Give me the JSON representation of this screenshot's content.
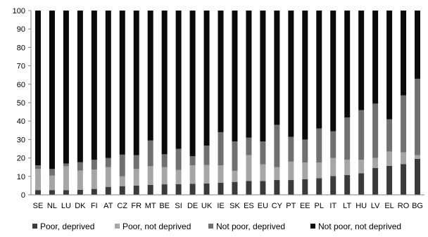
{
  "chart_data": {
    "type": "bar",
    "stacked": true,
    "categories": [
      "SE",
      "NL",
      "LU",
      "DK",
      "FI",
      "AT",
      "CZ",
      "FR",
      "MT",
      "BE",
      "SI",
      "DE",
      "UK",
      "IE",
      "SK",
      "ES",
      "EU",
      "CY",
      "PT",
      "EE",
      "PL",
      "IT",
      "LT",
      "HU",
      "LV",
      "EL",
      "RO",
      "BG"
    ],
    "series": [
      {
        "name": "Poor, deprived",
        "color": "#3a3a3a",
        "values": [
          2.5,
          2.5,
          2.5,
          2.7,
          3.2,
          4.3,
          4.7,
          5.0,
          5.4,
          5.7,
          5.8,
          6.0,
          6.2,
          6.5,
          7.0,
          7.5,
          7.5,
          8.0,
          8.0,
          8.5,
          9.0,
          10.2,
          10.7,
          11.7,
          14.5,
          15.7,
          16.7,
          19.5
        ]
      },
      {
        "name": "Poor, not deprived",
        "color": "#a6a6a6",
        "values": [
          11.5,
          8.0,
          13.0,
          10.5,
          10.5,
          10.7,
          5.3,
          9.0,
          10.1,
          9.3,
          7.7,
          10.0,
          10.0,
          9.5,
          6.0,
          14.0,
          9.0,
          7.0,
          10.0,
          9.0,
          8.5,
          9.8,
          8.3,
          7.3,
          5.5,
          7.8,
          6.3,
          2.0
        ]
      },
      {
        "name": "Not poor, deprived",
        "color": "#707070",
        "values": [
          2.0,
          3.5,
          1.5,
          4.5,
          5.3,
          5.0,
          11.8,
          7.5,
          14.0,
          7.0,
          11.5,
          5.0,
          10.5,
          18.0,
          16.0,
          9.5,
          12.5,
          23.0,
          13.5,
          12.5,
          18.5,
          14.5,
          23.0,
          27.0,
          29.5,
          17.5,
          31.0,
          41.5
        ]
      },
      {
        "name": "Not poor, not deprived",
        "color": "#0a0a0a",
        "values": [
          84.0,
          86.0,
          83.0,
          82.3,
          81.0,
          80.0,
          78.2,
          78.5,
          70.5,
          78.0,
          75.0,
          79.0,
          73.3,
          66.0,
          71.0,
          69.0,
          71.0,
          62.0,
          68.5,
          70.0,
          64.0,
          65.5,
          58.0,
          54.0,
          50.5,
          59.0,
          46.0,
          37.0
        ]
      }
    ],
    "ylim": [
      0,
      100
    ],
    "yticks": [
      "0",
      "10",
      "20",
      "30",
      "40",
      "50",
      "60",
      "70",
      "80",
      "90",
      "100"
    ],
    "title": "",
    "xlabel": "",
    "ylabel": "",
    "grid": false,
    "legend_position": "bottom"
  }
}
